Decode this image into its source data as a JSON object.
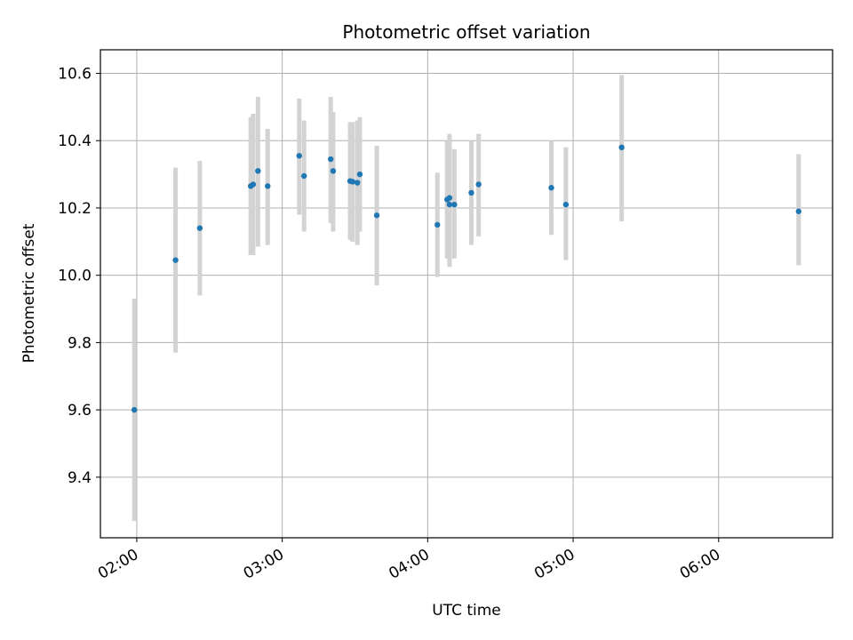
{
  "chart_data": {
    "type": "scatter",
    "title": "Photometric offset variation",
    "xlabel": "UTC time",
    "ylabel": "Photometric offset",
    "x_ticks": [
      "02:00",
      "03:00",
      "04:00",
      "05:00",
      "06:00"
    ],
    "y_ticks": [
      "9.4",
      "9.6",
      "9.8",
      "10.0",
      "10.2",
      "10.4",
      "10.6"
    ],
    "xlim": [
      "01:45",
      "06:47"
    ],
    "ylim": [
      9.22,
      10.67
    ],
    "grid": true,
    "colors": {
      "marker": "#1f77b4",
      "errorbar": "#d3d3d3",
      "grid": "#b0b0b0"
    },
    "points": [
      {
        "x": "01:59",
        "y": 9.6,
        "lo": 9.27,
        "hi": 9.93
      },
      {
        "x": "02:16",
        "y": 10.045,
        "lo": 9.77,
        "hi": 10.32
      },
      {
        "x": "02:26",
        "y": 10.14,
        "lo": 9.94,
        "hi": 10.34
      },
      {
        "x": "02:47",
        "y": 10.265,
        "lo": 10.06,
        "hi": 10.47
      },
      {
        "x": "02:48",
        "y": 10.27,
        "lo": 10.06,
        "hi": 10.48
      },
      {
        "x": "02:50",
        "y": 10.31,
        "lo": 10.085,
        "hi": 10.53
      },
      {
        "x": "02:54",
        "y": 10.265,
        "lo": 10.09,
        "hi": 10.435
      },
      {
        "x": "03:07",
        "y": 10.355,
        "lo": 10.18,
        "hi": 10.525
      },
      {
        "x": "03:09",
        "y": 10.295,
        "lo": 10.13,
        "hi": 10.46
      },
      {
        "x": "03:20",
        "y": 10.345,
        "lo": 10.155,
        "hi": 10.53
      },
      {
        "x": "03:21",
        "y": 10.31,
        "lo": 10.13,
        "hi": 10.485
      },
      {
        "x": "03:28",
        "y": 10.28,
        "lo": 10.105,
        "hi": 10.455
      },
      {
        "x": "03:29",
        "y": 10.278,
        "lo": 10.1,
        "hi": 10.455
      },
      {
        "x": "03:31",
        "y": 10.275,
        "lo": 10.09,
        "hi": 10.46
      },
      {
        "x": "03:32",
        "y": 10.3,
        "lo": 10.13,
        "hi": 10.47
      },
      {
        "x": "03:39",
        "y": 10.178,
        "lo": 9.97,
        "hi": 10.385
      },
      {
        "x": "04:04",
        "y": 10.15,
        "lo": 9.995,
        "hi": 10.305
      },
      {
        "x": "04:08",
        "y": 10.225,
        "lo": 10.05,
        "hi": 10.4
      },
      {
        "x": "04:09",
        "y": 10.23,
        "lo": 10.05,
        "hi": 10.42
      },
      {
        "x": "04:09",
        "y": 10.21,
        "lo": 10.025,
        "hi": 10.4
      },
      {
        "x": "04:11",
        "y": 10.21,
        "lo": 10.05,
        "hi": 10.375
      },
      {
        "x": "04:18",
        "y": 10.245,
        "lo": 10.09,
        "hi": 10.4
      },
      {
        "x": "04:21",
        "y": 10.27,
        "lo": 10.115,
        "hi": 10.42
      },
      {
        "x": "04:51",
        "y": 10.26,
        "lo": 10.12,
        "hi": 10.4
      },
      {
        "x": "04:57",
        "y": 10.21,
        "lo": 10.045,
        "hi": 10.38
      },
      {
        "x": "05:20",
        "y": 10.38,
        "lo": 10.16,
        "hi": 10.595
      },
      {
        "x": "06:33",
        "y": 10.19,
        "lo": 10.03,
        "hi": 10.36
      }
    ]
  }
}
